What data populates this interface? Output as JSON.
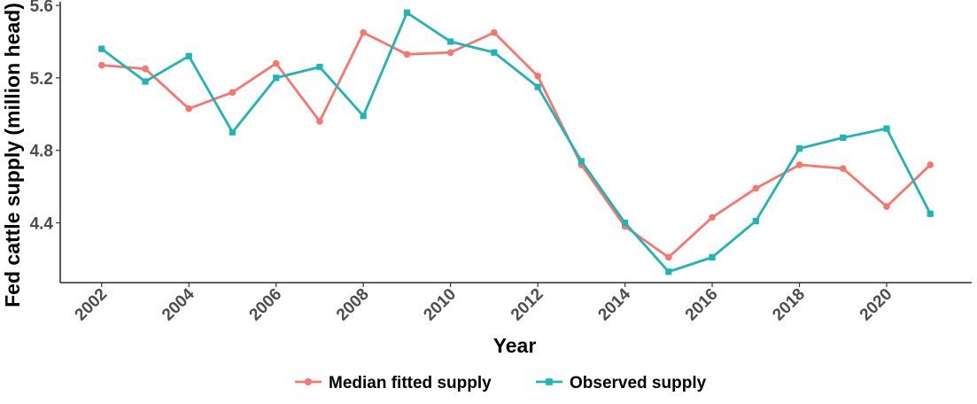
{
  "chart_data": {
    "type": "line",
    "xlabel": "Year",
    "ylabel": "Fed cattle supply (million head)",
    "x": [
      2002,
      2003,
      2004,
      2005,
      2006,
      2007,
      2008,
      2009,
      2010,
      2011,
      2012,
      2013,
      2014,
      2015,
      2016,
      2017,
      2018,
      2019,
      2020,
      2021
    ],
    "xticks": [
      "2002",
      "2004",
      "2006",
      "2008",
      "2010",
      "2012",
      "2014",
      "2016",
      "2018",
      "2020"
    ],
    "yticks": [
      "4.4",
      "4.8",
      "5.2",
      "5.6"
    ],
    "xlim": [
      2001.05,
      2021.95
    ],
    "ylim": [
      4.07,
      5.62
    ],
    "grid": false,
    "legend_position": "bottom",
    "series": [
      {
        "name": "Median fitted supply",
        "color": "#F8766D",
        "marker": "circle",
        "values": [
          5.27,
          5.25,
          5.03,
          5.12,
          5.28,
          4.96,
          5.45,
          5.33,
          5.34,
          5.45,
          5.21,
          4.72,
          4.38,
          4.21,
          4.43,
          4.59,
          4.72,
          4.7,
          4.49,
          4.72
        ]
      },
      {
        "name": "Observed supply",
        "color": "#1FB5B5",
        "marker": "square",
        "values": [
          5.36,
          5.18,
          5.32,
          4.9,
          5.2,
          5.26,
          4.99,
          5.56,
          5.4,
          5.34,
          5.15,
          4.74,
          4.4,
          4.13,
          4.21,
          4.41,
          4.81,
          4.87,
          4.92,
          4.45
        ]
      }
    ]
  }
}
